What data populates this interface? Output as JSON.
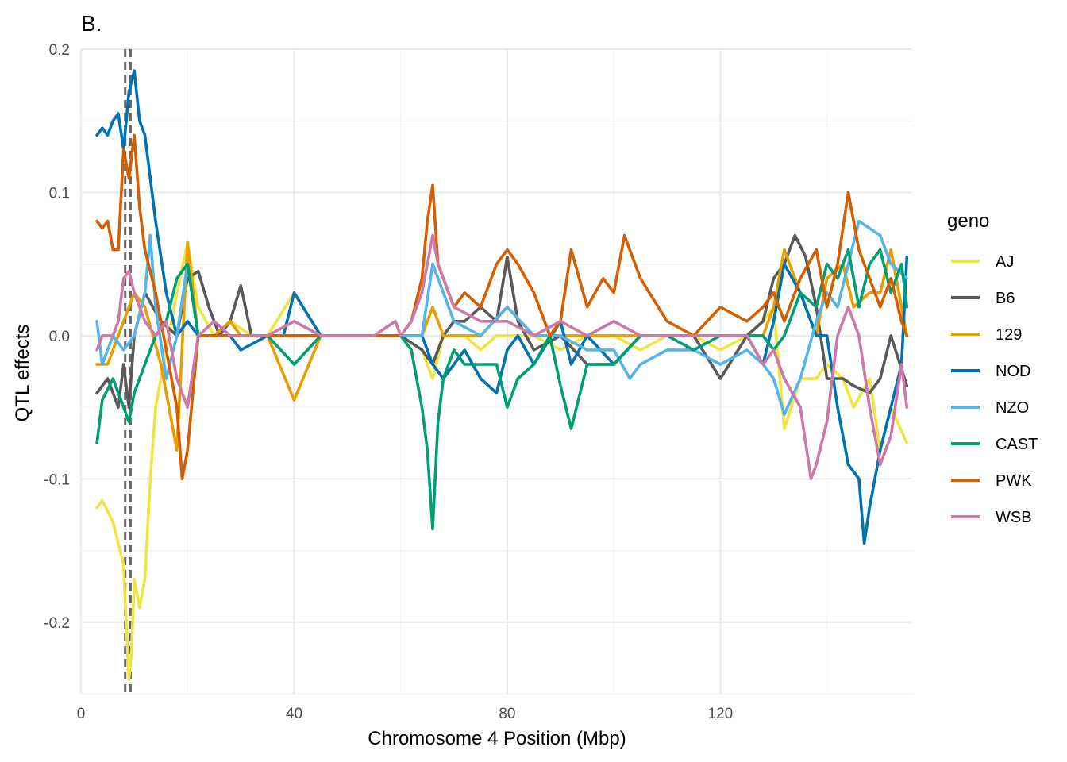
{
  "chart_data": {
    "type": "line",
    "title": "B.",
    "xlabel": "Chromosome 4 Position (Mbp)",
    "ylabel": "QTL effects",
    "xlim": [
      0,
      156
    ],
    "ylim": [
      -0.25,
      0.2
    ],
    "xticks": [
      0,
      40,
      80,
      120
    ],
    "xtick_labels": [
      "0",
      "40",
      "80",
      "120"
    ],
    "yticks": [
      -0.2,
      -0.1,
      0.0,
      0.1,
      0.2
    ],
    "ytick_labels": [
      "-0.2",
      "-0.1",
      "0.0",
      "0.1",
      "0.2"
    ],
    "grid": true,
    "legend": {
      "title": "geno",
      "position": "right"
    },
    "vlines": [
      8.3,
      9.3
    ],
    "series": [
      {
        "name": "AJ",
        "color": "#F0E442",
        "x": [
          3,
          4,
          6,
          8,
          8.5,
          9,
          9.5,
          10,
          11,
          12,
          13,
          14,
          16,
          18,
          20,
          22,
          25,
          28,
          32,
          35,
          40,
          45,
          55,
          60,
          64,
          66,
          68,
          72,
          75,
          78,
          80,
          85,
          90,
          95,
          100,
          105,
          110,
          115,
          120,
          125,
          128,
          130,
          132,
          135,
          138,
          140,
          143,
          145,
          148,
          150,
          152,
          155
        ],
        "y": [
          -0.12,
          -0.115,
          -0.13,
          -0.16,
          -0.2,
          -0.24,
          -0.22,
          -0.17,
          -0.19,
          -0.17,
          -0.1,
          -0.05,
          -0.01,
          0.03,
          0.065,
          0.02,
          0.0,
          0.01,
          0.0,
          0.0,
          0.03,
          0.0,
          0.0,
          0.0,
          -0.01,
          -0.03,
          0.0,
          0.0,
          -0.01,
          0.0,
          0.0,
          0.0,
          -0.01,
          0.0,
          0.0,
          -0.01,
          0.0,
          0.0,
          -0.01,
          0.0,
          0.01,
          0.02,
          -0.065,
          -0.03,
          -0.03,
          -0.02,
          -0.03,
          -0.05,
          -0.03,
          -0.08,
          -0.05,
          -0.075
        ]
      },
      {
        "name": "B6",
        "color": "#595959",
        "x": [
          3,
          5,
          7,
          8,
          9,
          10,
          12,
          15,
          18,
          20,
          22,
          24,
          26,
          28,
          30,
          32,
          35,
          40,
          45,
          55,
          60,
          64,
          66,
          68,
          70,
          72,
          75,
          78,
          80,
          82,
          85,
          90,
          95,
          100,
          105,
          110,
          115,
          120,
          125,
          128,
          130,
          132,
          134,
          136,
          138,
          140,
          143,
          145,
          148,
          150,
          152,
          155
        ],
        "y": [
          -0.04,
          -0.03,
          -0.05,
          -0.02,
          -0.05,
          0.0,
          0.03,
          0.01,
          0.0,
          0.04,
          0.045,
          0.02,
          0.0,
          0.01,
          0.035,
          0.0,
          0.0,
          0.0,
          0.0,
          0.0,
          0.0,
          -0.01,
          -0.02,
          0.0,
          0.01,
          0.01,
          0.02,
          0.01,
          0.055,
          0.01,
          -0.01,
          0.0,
          -0.02,
          -0.02,
          0.0,
          0.0,
          0.0,
          -0.03,
          0.0,
          0.01,
          0.04,
          0.05,
          0.07,
          0.055,
          0.02,
          -0.03,
          -0.03,
          -0.035,
          -0.04,
          -0.03,
          0.0,
          -0.035
        ]
      },
      {
        "name": "129",
        "color": "#E69F00",
        "x": [
          3,
          5,
          7,
          8,
          9,
          10,
          12,
          15,
          18,
          20,
          22,
          25,
          28,
          30,
          35,
          40,
          45,
          55,
          60,
          64,
          66,
          68,
          70,
          75,
          80,
          85,
          90,
          95,
          100,
          105,
          110,
          115,
          120,
          125,
          128,
          130,
          132,
          135,
          138,
          140,
          143,
          145,
          148,
          150,
          152,
          155
        ],
        "y": [
          -0.02,
          -0.02,
          0.0,
          0.01,
          0.02,
          0.03,
          0.02,
          -0.02,
          -0.08,
          0.065,
          0.0,
          0.0,
          0.01,
          0.0,
          0.0,
          -0.045,
          0.0,
          0.0,
          0.0,
          0.0,
          0.02,
          0.0,
          0.0,
          0.0,
          0.02,
          0.0,
          0.0,
          0.0,
          0.0,
          0.0,
          0.0,
          0.0,
          0.0,
          0.0,
          0.0,
          0.02,
          0.06,
          0.03,
          0.0,
          0.04,
          0.05,
          0.02,
          0.03,
          0.03,
          0.06,
          0.0
        ]
      },
      {
        "name": "NOD",
        "color": "#0072B2",
        "x": [
          3,
          4,
          5,
          6,
          7,
          8,
          9,
          10,
          11,
          12,
          13,
          14,
          16,
          18,
          20,
          22,
          25,
          28,
          30,
          35,
          38,
          40,
          45,
          55,
          60,
          64,
          66,
          68,
          70,
          72,
          75,
          78,
          80,
          82,
          85,
          90,
          92,
          95,
          100,
          105,
          110,
          115,
          120,
          125,
          128,
          130,
          132,
          135,
          138,
          140,
          142,
          144,
          146,
          147,
          148,
          150,
          152,
          154,
          155
        ],
        "y": [
          0.14,
          0.145,
          0.14,
          0.15,
          0.155,
          0.13,
          0.17,
          0.185,
          0.15,
          0.14,
          0.11,
          0.08,
          0.03,
          0.0,
          0.01,
          0.0,
          0.0,
          0.0,
          -0.01,
          0.0,
          0.0,
          0.03,
          0.0,
          0.0,
          0.0,
          0.0,
          -0.02,
          -0.03,
          -0.02,
          -0.01,
          -0.03,
          -0.04,
          -0.01,
          0.0,
          -0.02,
          0.01,
          -0.02,
          0.0,
          -0.02,
          0.0,
          0.0,
          0.0,
          0.0,
          0.0,
          -0.02,
          0.01,
          0.05,
          0.03,
          0.0,
          0.0,
          -0.05,
          -0.09,
          -0.1,
          -0.145,
          -0.12,
          -0.08,
          -0.05,
          -0.02,
          0.055
        ]
      },
      {
        "name": "NZO",
        "color": "#56B4E9",
        "x": [
          3,
          4,
          6,
          8,
          10,
          12,
          13,
          14,
          16,
          18,
          20,
          22,
          25,
          28,
          32,
          35,
          40,
          45,
          55,
          60,
          64,
          66,
          68,
          70,
          75,
          80,
          85,
          90,
          95,
          100,
          103,
          105,
          110,
          115,
          120,
          125,
          128,
          130,
          132,
          135,
          138,
          140,
          142,
          144,
          146,
          148,
          150,
          152,
          155
        ],
        "y": [
          0.01,
          -0.02,
          0.0,
          -0.01,
          0.0,
          0.03,
          0.07,
          0.02,
          -0.03,
          0.0,
          0.05,
          0.0,
          0.0,
          0.0,
          0.0,
          0.0,
          0.0,
          0.0,
          0.0,
          0.0,
          0.0,
          0.05,
          0.03,
          0.01,
          0.0,
          0.02,
          0.0,
          0.0,
          -0.01,
          -0.01,
          -0.03,
          -0.02,
          -0.01,
          -0.01,
          -0.02,
          -0.01,
          -0.02,
          -0.03,
          -0.055,
          -0.03,
          0.01,
          0.03,
          0.02,
          0.05,
          0.08,
          0.075,
          0.07,
          0.05,
          0.04
        ]
      },
      {
        "name": "CAST",
        "color": "#009E73",
        "x": [
          3,
          4,
          6,
          8,
          9,
          10,
          12,
          14,
          16,
          18,
          20,
          22,
          25,
          28,
          32,
          35,
          40,
          45,
          55,
          60,
          62,
          64,
          65,
          66,
          67,
          68,
          70,
          72,
          75,
          78,
          80,
          82,
          85,
          88,
          90,
          92,
          95,
          100,
          105,
          110,
          115,
          120,
          125,
          128,
          130,
          132,
          135,
          138,
          140,
          142,
          144,
          146,
          148,
          150,
          152,
          154,
          155
        ],
        "y": [
          -0.075,
          -0.045,
          -0.03,
          -0.05,
          -0.06,
          -0.04,
          -0.02,
          0.0,
          0.01,
          0.04,
          0.05,
          0.0,
          0.0,
          0.0,
          0.0,
          0.0,
          -0.02,
          0.0,
          0.0,
          0.0,
          -0.01,
          -0.05,
          -0.08,
          -0.135,
          -0.06,
          -0.03,
          -0.01,
          -0.02,
          -0.02,
          -0.02,
          -0.05,
          -0.03,
          -0.02,
          0.0,
          -0.035,
          -0.065,
          -0.02,
          -0.02,
          0.0,
          0.0,
          -0.01,
          0.0,
          0.0,
          0.0,
          -0.01,
          0.0,
          0.03,
          0.02,
          0.05,
          0.04,
          0.06,
          0.02,
          0.05,
          0.06,
          0.03,
          0.05,
          0.02
        ]
      },
      {
        "name": "PWK",
        "color": "#D55E00",
        "x": [
          3,
          4,
          5,
          6,
          7,
          8,
          9,
          10,
          11,
          12,
          14,
          16,
          18,
          19,
          20,
          22,
          25,
          28,
          32,
          35,
          40,
          45,
          55,
          60,
          62,
          64,
          65,
          66,
          67,
          68,
          70,
          72,
          75,
          78,
          80,
          82,
          85,
          88,
          90,
          92,
          95,
          98,
          100,
          102,
          105,
          110,
          115,
          120,
          125,
          128,
          130,
          132,
          135,
          138,
          140,
          142,
          144,
          146,
          148,
          150,
          152,
          154,
          155
        ],
        "y": [
          0.08,
          0.075,
          0.08,
          0.06,
          0.06,
          0.13,
          0.11,
          0.14,
          0.09,
          0.06,
          0.03,
          -0.01,
          -0.05,
          -0.1,
          -0.08,
          0.0,
          0.0,
          0.0,
          0.0,
          0.0,
          0.0,
          0.0,
          0.0,
          0.0,
          0.01,
          0.04,
          0.08,
          0.105,
          0.05,
          0.04,
          0.02,
          0.03,
          0.02,
          0.05,
          0.06,
          0.05,
          0.03,
          0.0,
          0.01,
          0.06,
          0.02,
          0.04,
          0.03,
          0.07,
          0.04,
          0.01,
          0.0,
          0.02,
          0.01,
          0.02,
          0.03,
          0.01,
          0.04,
          0.06,
          0.02,
          0.05,
          0.1,
          0.06,
          0.04,
          0.02,
          0.04,
          0.01,
          0.0
        ]
      },
      {
        "name": "WSB",
        "color": "#CC79A7",
        "x": [
          3,
          4,
          6,
          7,
          8,
          9,
          10,
          11,
          12,
          14,
          16,
          18,
          20,
          22,
          25,
          28,
          32,
          35,
          40,
          45,
          55,
          59,
          60,
          62,
          64,
          65,
          66,
          67,
          68,
          70,
          75,
          80,
          85,
          90,
          95,
          100,
          105,
          110,
          115,
          120,
          125,
          128,
          130,
          132,
          135,
          137,
          138,
          140,
          142,
          144,
          146,
          148,
          150,
          152,
          154,
          155
        ],
        "y": [
          -0.01,
          0.0,
          0.0,
          0.01,
          0.04,
          0.045,
          0.03,
          0.02,
          0.01,
          0.0,
          0.01,
          -0.03,
          -0.05,
          0.0,
          0.01,
          0.0,
          0.0,
          0.0,
          0.01,
          0.0,
          0.0,
          0.01,
          0.0,
          0.01,
          0.03,
          0.05,
          0.07,
          0.05,
          0.04,
          0.02,
          0.01,
          0.01,
          0.0,
          0.01,
          0.0,
          0.01,
          0.0,
          0.0,
          0.0,
          0.0,
          0.0,
          -0.02,
          -0.01,
          -0.03,
          -0.05,
          -0.1,
          -0.09,
          -0.06,
          0.0,
          0.02,
          0.0,
          -0.05,
          -0.09,
          -0.07,
          -0.02,
          -0.05
        ]
      }
    ]
  }
}
